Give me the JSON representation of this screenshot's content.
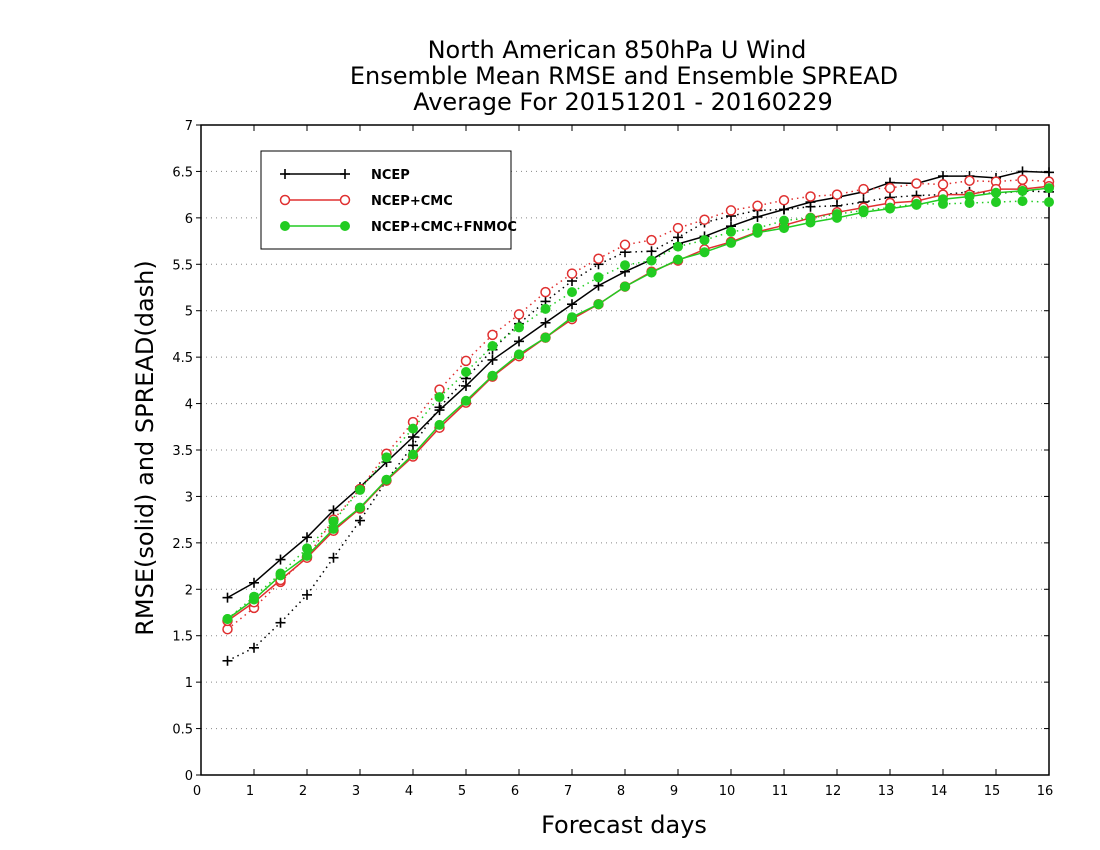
{
  "chart_data": {
    "type": "line",
    "title": [
      "North American 850hPa U Wind",
      "Ensemble Mean RMSE and Ensemble SPREAD",
      "Average For 20151201 - 20160229"
    ],
    "xlabel": "Forecast days",
    "ylabel": "RMSE(solid) and SPREAD(dash)",
    "xlim": [
      0,
      16
    ],
    "ylim": [
      0,
      7
    ],
    "xticks": [
      "0",
      "1",
      "2",
      "3",
      "4",
      "5",
      "6",
      "7",
      "8",
      "9",
      "10",
      "11",
      "12",
      "13",
      "14",
      "15",
      "16"
    ],
    "yticks": [
      "0",
      "0.5",
      "1",
      "1.5",
      "2",
      "2.5",
      "3",
      "3.5",
      "4",
      "4.5",
      "5",
      "5.5",
      "6",
      "6.5",
      "7"
    ],
    "grid": "horizontal-dotted",
    "legend_position": "top-left",
    "x": [
      0.5,
      1,
      1.5,
      2,
      2.5,
      3,
      3.5,
      4,
      4.5,
      5,
      5.5,
      6,
      6.5,
      7,
      7.5,
      8,
      8.5,
      9,
      9.5,
      10,
      10.5,
      11,
      11.5,
      12,
      12.5,
      13,
      13.5,
      14,
      14.5,
      15,
      15.5,
      16
    ],
    "series": [
      {
        "name": "NCEP",
        "color": "#000000",
        "marker": "plus",
        "rmse": [
          1.91,
          2.07,
          2.32,
          2.56,
          2.85,
          3.1,
          3.37,
          3.64,
          3.93,
          4.19,
          4.47,
          4.67,
          4.87,
          5.07,
          5.27,
          5.42,
          5.55,
          5.72,
          5.8,
          5.91,
          6.01,
          6.09,
          6.17,
          6.22,
          6.28,
          6.38,
          6.37,
          6.45,
          6.45,
          6.43,
          6.5,
          6.49
        ],
        "spread": [
          1.23,
          1.37,
          1.64,
          1.94,
          2.34,
          2.74,
          3.17,
          3.55,
          3.96,
          4.27,
          4.58,
          4.86,
          5.1,
          5.32,
          5.5,
          5.63,
          5.64,
          5.79,
          5.95,
          6.02,
          6.08,
          6.09,
          6.12,
          6.13,
          6.17,
          6.22,
          6.24,
          6.25,
          6.28,
          6.26,
          6.29,
          6.28
        ]
      },
      {
        "name": "NCEP+CMC",
        "color": "#e03030",
        "marker": "open-circle",
        "rmse": [
          1.66,
          1.86,
          2.1,
          2.34,
          2.63,
          2.87,
          3.17,
          3.43,
          3.74,
          4.01,
          4.29,
          4.51,
          4.71,
          4.91,
          5.07,
          5.26,
          5.42,
          5.54,
          5.66,
          5.74,
          5.85,
          5.92,
          6.0,
          6.06,
          6.11,
          6.16,
          6.18,
          6.25,
          6.25,
          6.31,
          6.31,
          6.34
        ],
        "spread": [
          1.57,
          1.8,
          2.08,
          2.35,
          2.75,
          3.08,
          3.46,
          3.8,
          4.15,
          4.46,
          4.74,
          4.96,
          5.2,
          5.4,
          5.56,
          5.71,
          5.76,
          5.89,
          5.98,
          6.08,
          6.13,
          6.19,
          6.23,
          6.25,
          6.31,
          6.32,
          6.37,
          6.36,
          6.4,
          6.39,
          6.41,
          6.39
        ]
      },
      {
        "name": "NCEP+CMC+FNMOC",
        "color": "#22cc22",
        "marker": "filled-circle",
        "rmse": [
          1.68,
          1.89,
          2.15,
          2.36,
          2.65,
          2.88,
          3.18,
          3.45,
          3.77,
          4.03,
          4.3,
          4.53,
          4.71,
          4.93,
          5.07,
          5.26,
          5.41,
          5.55,
          5.63,
          5.73,
          5.84,
          5.89,
          5.95,
          6.0,
          6.06,
          6.1,
          6.14,
          6.2,
          6.23,
          6.27,
          6.29,
          6.32
        ],
        "spread": [
          1.68,
          1.92,
          2.17,
          2.44,
          2.73,
          3.07,
          3.42,
          3.73,
          4.07,
          4.34,
          4.62,
          4.82,
          5.02,
          5.2,
          5.36,
          5.49,
          5.54,
          5.69,
          5.76,
          5.85,
          5.89,
          5.97,
          6.0,
          6.04,
          6.08,
          6.11,
          6.15,
          6.15,
          6.16,
          6.17,
          6.18,
          6.17
        ]
      }
    ]
  }
}
